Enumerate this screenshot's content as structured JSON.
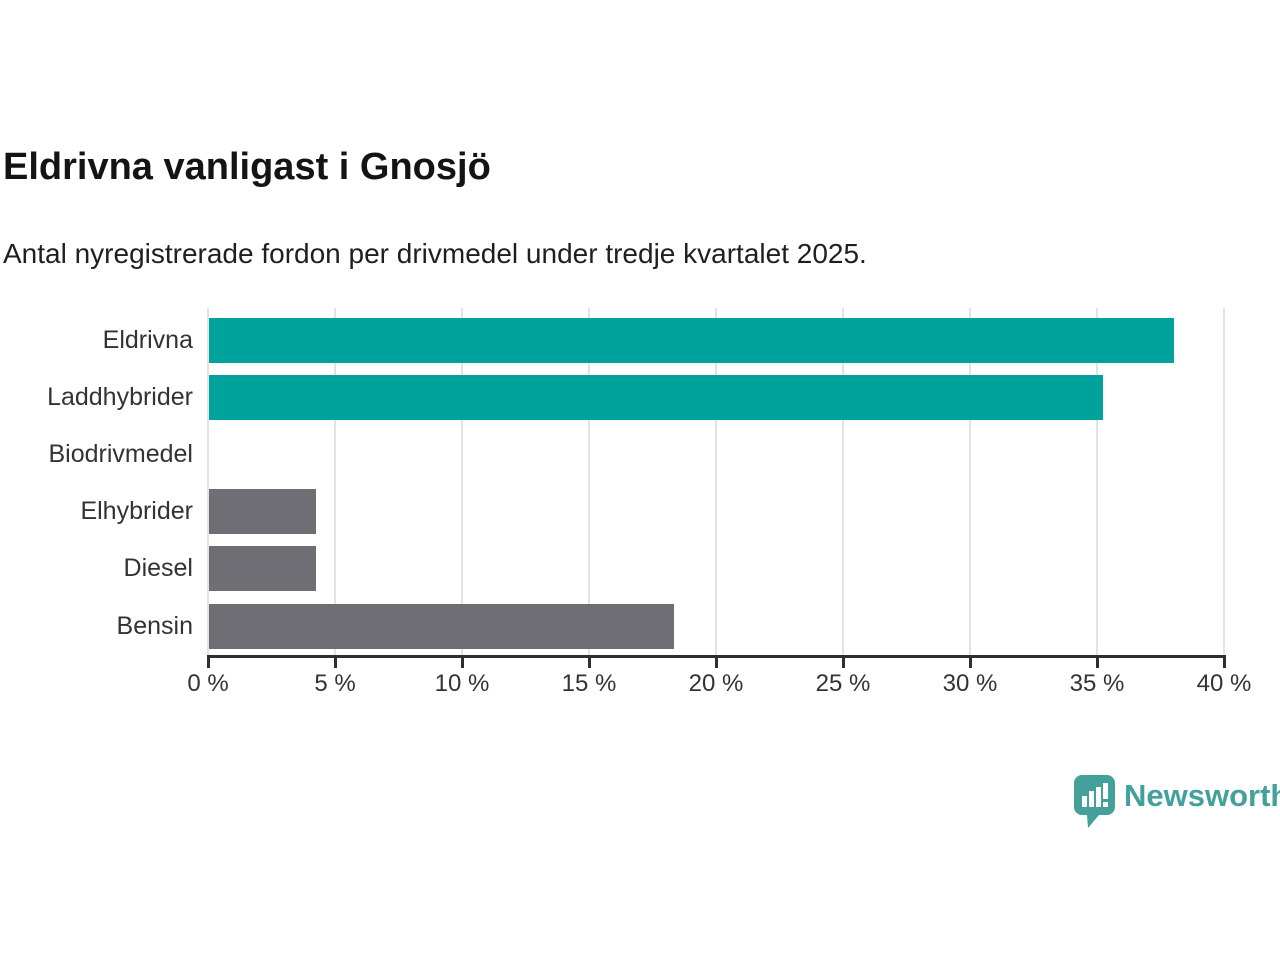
{
  "chart_data": {
    "type": "bar",
    "orientation": "horizontal",
    "title": "Eldrivna vanligast i Gnosjö",
    "subtitle": "Antal nyregistrerade fordon per drivmedel under tredje kvartalet 2025.",
    "categories": [
      "Eldrivna",
      "Laddhybrider",
      "Biodrivmedel",
      "Elhybrider",
      "Diesel",
      "Bensin"
    ],
    "values": [
      38.0,
      35.2,
      0,
      4.2,
      4.2,
      18.3
    ],
    "unit": "%",
    "bar_colors": [
      "#00a39b",
      "#00a39b",
      "#6f6e74",
      "#6f6e74",
      "#6f6e74",
      "#6f6e74"
    ],
    "xlim": [
      0,
      40
    ],
    "x_ticks": [
      0,
      5,
      10,
      15,
      20,
      25,
      30,
      35,
      40
    ],
    "x_tick_labels": [
      "0 %",
      "5 %",
      "10 %",
      "15 %",
      "20 %",
      "25 %",
      "30 %",
      "35 %",
      "40 %"
    ],
    "grid": "vertical",
    "legend": "none"
  },
  "colors": {
    "teal": "#00a39b",
    "gray": "#6f6e74",
    "gridline": "#e3e3e3",
    "axis": "#2e2e2e",
    "text": "#333333",
    "brand_teal": "#44a09a"
  },
  "branding": {
    "logo_text": "Newsworthy",
    "logo_icon": "speech-bubble-bar-chart-exclamation"
  }
}
